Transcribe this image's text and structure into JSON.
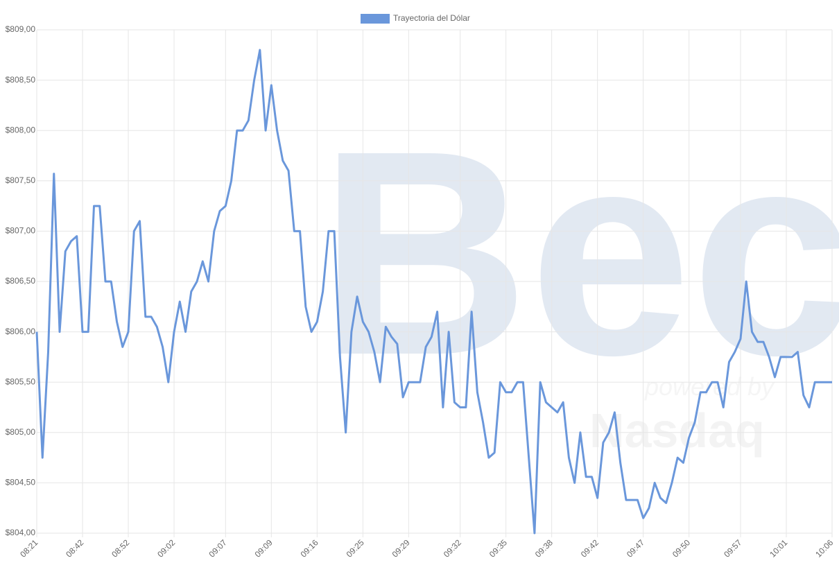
{
  "chart_data": {
    "type": "line",
    "watermark": {
      "logo": "Bec",
      "tagline": "powered by",
      "brand": "Nasdaq"
    },
    "categories": [
      "08:21",
      null,
      null,
      null,
      null,
      null,
      null,
      null,
      "08:42",
      null,
      null,
      null,
      null,
      null,
      null,
      null,
      "08:52",
      null,
      null,
      null,
      null,
      null,
      null,
      null,
      "09:02",
      null,
      null,
      null,
      null,
      null,
      null,
      null,
      null,
      "09:07",
      null,
      null,
      null,
      null,
      null,
      null,
      null,
      "09:09",
      null,
      null,
      null,
      null,
      null,
      null,
      null,
      "09:16",
      null,
      null,
      null,
      null,
      null,
      null,
      null,
      "09:25",
      null,
      null,
      null,
      null,
      null,
      null,
      null,
      "09:29",
      null,
      null,
      null,
      null,
      null,
      null,
      null,
      null,
      "09:32",
      null,
      null,
      null,
      null,
      null,
      null,
      null,
      "09:35",
      null,
      null,
      null,
      null,
      null,
      null,
      null,
      "09:38",
      null,
      null,
      null,
      null,
      null,
      null,
      null,
      "09:42",
      null,
      null,
      null,
      null,
      null,
      null,
      null,
      "09:47",
      null,
      null,
      null,
      null,
      null,
      null,
      null,
      "09:50",
      null,
      null,
      null,
      null,
      null,
      null,
      null,
      null,
      "09:57",
      null,
      null,
      null,
      null,
      null,
      null,
      null,
      "10:01",
      null,
      null,
      null,
      null,
      null,
      null,
      null,
      "10:06"
    ],
    "series": [
      {
        "name": "Trayectoria del Dólar",
        "color": "#6a97db",
        "values": [
          806.0,
          804.75,
          805.8,
          807.57,
          806.0,
          806.8,
          806.9,
          806.95,
          806.0,
          806.0,
          807.25,
          807.25,
          806.5,
          806.5,
          806.1,
          805.85,
          806.0,
          807.0,
          807.1,
          806.15,
          806.15,
          806.05,
          805.85,
          805.5,
          806.0,
          806.3,
          806.0,
          806.4,
          806.5,
          806.7,
          806.5,
          807.0,
          807.2,
          807.25,
          807.5,
          808.0,
          808.0,
          808.1,
          808.5,
          808.8,
          808.0,
          808.45,
          808.0,
          807.7,
          807.6,
          807.0,
          807.0,
          806.25,
          806.0,
          806.1,
          806.4,
          807.0,
          807.0,
          805.75,
          805.0,
          806.0,
          806.35,
          806.1,
          806.0,
          805.8,
          805.5,
          806.05,
          805.95,
          805.88,
          805.35,
          805.5,
          805.5,
          805.5,
          805.85,
          805.95,
          806.2,
          805.25,
          806.0,
          805.3,
          805.25,
          805.25,
          806.2,
          805.4,
          805.1,
          804.75,
          804.8,
          805.5,
          805.4,
          805.4,
          805.5,
          805.5,
          804.75,
          804.0,
          805.5,
          805.3,
          805.25,
          805.2,
          805.3,
          804.75,
          804.5,
          805.0,
          804.56,
          804.56,
          804.35,
          804.9,
          805.0,
          805.2,
          804.7,
          804.33,
          804.33,
          804.33,
          804.15,
          804.25,
          804.5,
          804.35,
          804.3,
          804.5,
          804.75,
          804.7,
          804.95,
          805.1,
          805.4,
          805.4,
          805.5,
          805.5,
          805.25,
          805.7,
          805.8,
          805.93,
          806.5,
          806.0,
          805.9,
          805.9,
          805.75,
          805.55,
          805.75,
          805.75,
          805.75,
          805.8,
          805.37,
          805.25,
          805.5,
          805.5,
          805.5,
          805.5
        ]
      }
    ],
    "ylim": [
      804,
      809
    ],
    "yticks": [
      {
        "value": 804,
        "label": "$804,00"
      },
      {
        "value": 804.5,
        "label": "$804,50"
      },
      {
        "value": 805,
        "label": "$805,00"
      },
      {
        "value": 805.5,
        "label": "$805,50"
      },
      {
        "value": 806,
        "label": "$806,00"
      },
      {
        "value": 806.5,
        "label": "$806,50"
      },
      {
        "value": 807,
        "label": "$807,00"
      },
      {
        "value": 807.5,
        "label": "$807,50"
      },
      {
        "value": 808,
        "label": "$808,00"
      },
      {
        "value": 808.5,
        "label": "$808,50"
      },
      {
        "value": 809,
        "label": "$809,00"
      }
    ],
    "grid": true,
    "legend": "top"
  }
}
